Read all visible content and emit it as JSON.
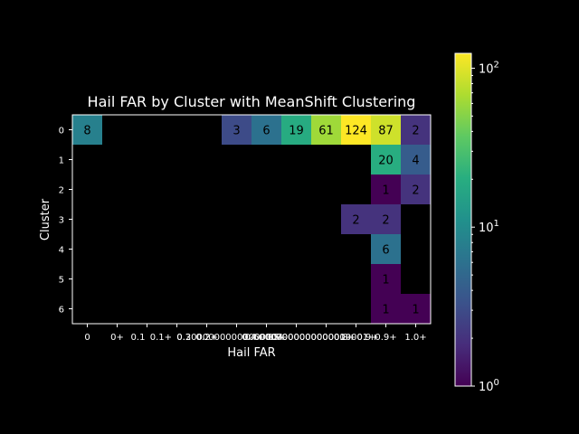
{
  "chart_data": {
    "type": "heatmap",
    "title": "Hail FAR by Cluster with MeanShift Clustering",
    "xlabel": "Hail FAR",
    "ylabel": "Cluster",
    "x_ticks": [
      "0",
      "0+",
      "0.1",
      "0.1+",
      "0.2+",
      "0.30000000000000004",
      "0.4+",
      "0.5+",
      "0.6000000000000001+",
      "0.7000000000000001+",
      "0.8+",
      "0.9+",
      "1.0+"
    ],
    "x_tick_overlap_strings": [
      "0.1",
      "0.1+",
      "0.2",
      "0.2+",
      "0.30000000000000004",
      "0.4+",
      "0.5+",
      "0.6000000000000001+",
      "0.7000000000000001+",
      "0.8+",
      "0.9+"
    ],
    "columns": 12,
    "y_ticks": [
      "0",
      "1",
      "2",
      "3",
      "4",
      "5",
      "6"
    ],
    "cells": [
      {
        "row": 0,
        "col": 0,
        "value": 8
      },
      {
        "row": 0,
        "col": 5,
        "value": 3
      },
      {
        "row": 0,
        "col": 6,
        "value": 6
      },
      {
        "row": 0,
        "col": 7,
        "value": 19
      },
      {
        "row": 0,
        "col": 8,
        "value": 61
      },
      {
        "row": 0,
        "col": 9,
        "value": 124
      },
      {
        "row": 0,
        "col": 10,
        "value": 87
      },
      {
        "row": 0,
        "col": 11,
        "value": 2
      },
      {
        "row": 1,
        "col": 10,
        "value": 20
      },
      {
        "row": 1,
        "col": 11,
        "value": 4
      },
      {
        "row": 2,
        "col": 10,
        "value": 1
      },
      {
        "row": 2,
        "col": 11,
        "value": 2
      },
      {
        "row": 3,
        "col": 9,
        "value": 2
      },
      {
        "row": 3,
        "col": 10,
        "value": 2
      },
      {
        "row": 4,
        "col": 10,
        "value": 6
      },
      {
        "row": 5,
        "col": 10,
        "value": 1
      },
      {
        "row": 6,
        "col": 10,
        "value": 1
      },
      {
        "row": 6,
        "col": 11,
        "value": 1
      }
    ],
    "color_scale": "log",
    "colormap": "viridis",
    "vmin": 1,
    "vmax": 124,
    "colorbar_ticks": [
      {
        "value": 1,
        "label": "10",
        "exp": "0"
      },
      {
        "value": 10,
        "label": "10",
        "exp": "1"
      },
      {
        "value": 100,
        "label": "10",
        "exp": "2"
      }
    ],
    "background": "#000000",
    "foreground": "#ffffff"
  }
}
